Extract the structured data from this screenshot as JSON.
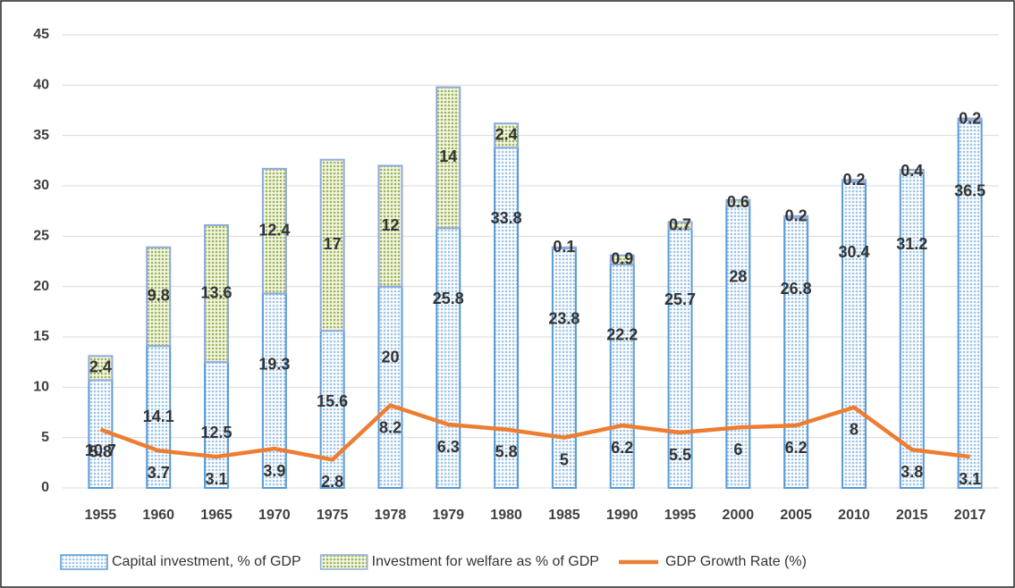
{
  "chart_data": {
    "type": "bar",
    "stacked": true,
    "categories": [
      "1955",
      "1960",
      "1965",
      "1970",
      "1975",
      "1978",
      "1979",
      "1980",
      "1985",
      "1990",
      "1995",
      "2000",
      "2005",
      "2010",
      "2015",
      "2017"
    ],
    "series": [
      {
        "name": "Capital investment, % of GDP",
        "type": "bar",
        "color": "#9dc3e6",
        "values": [
          10.7,
          14.1,
          12.5,
          19.3,
          15.6,
          20,
          25.8,
          33.8,
          23.8,
          22.2,
          25.7,
          28,
          26.8,
          30.4,
          31.2,
          36.5
        ]
      },
      {
        "name": "Investment for welfare as % of GDP",
        "type": "bar",
        "color": "#c9d98f",
        "values": [
          2.4,
          9.8,
          13.6,
          12.4,
          17,
          12,
          14,
          2.4,
          0.1,
          0.9,
          0.7,
          0.6,
          0.2,
          0.2,
          0.4,
          0.2
        ]
      },
      {
        "name": "GDP Growth Rate (%)",
        "type": "line",
        "color": "#ed7d31",
        "values": [
          5.8,
          3.7,
          3.1,
          3.9,
          2.8,
          8.2,
          6.3,
          5.8,
          5,
          6.2,
          5.5,
          6,
          6.2,
          8,
          3.8,
          3.1
        ]
      }
    ],
    "ylim": [
      0,
      45
    ],
    "yticks": [
      0,
      5,
      10,
      15,
      20,
      25,
      30,
      35,
      40,
      45
    ],
    "grid": true,
    "legend": "bottom"
  }
}
